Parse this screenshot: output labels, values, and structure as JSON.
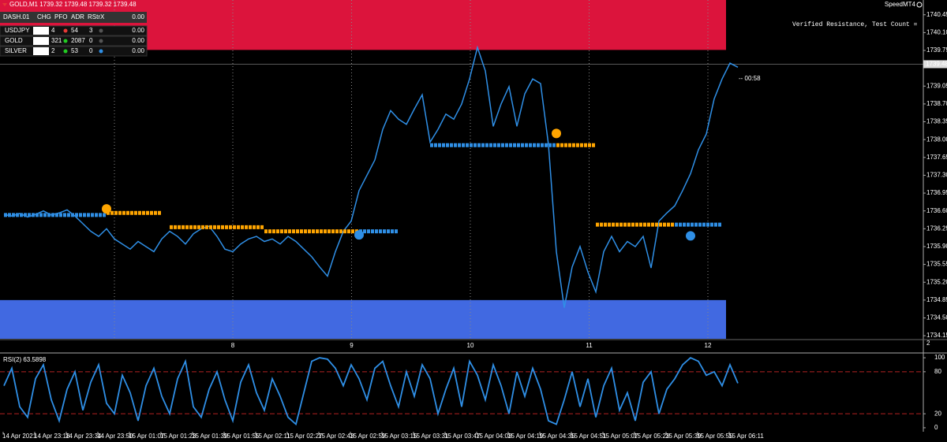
{
  "header": {
    "symbol_info": "GOLD,M1 1739.32 1739.48 1739.32 1739.48",
    "app": "SpeedMT4"
  },
  "dashboard": {
    "columns": [
      "DASH.01",
      "CHG",
      "PFO",
      "ADR",
      "RStr",
      "X",
      "0.00"
    ],
    "rows": [
      {
        "symbol": "USDJPY",
        "chg": "3%",
        "pfo": "4",
        "adr": "54",
        "rstr": "3",
        "value": "0.00",
        "symbol_color": "#ffffff",
        "dot_colors": [
          "#e53935",
          "#555555"
        ]
      },
      {
        "symbol": "GOLD",
        "chg": "19%",
        "pfo": "321",
        "adr": "2087",
        "rstr": "0",
        "value": "0.00",
        "symbol_color": "#40e0d0",
        "dot_colors": [
          "#22cc22",
          "#555555"
        ]
      },
      {
        "symbol": "SILVER",
        "chg": "6%",
        "pfo": "2",
        "adr": "53",
        "rstr": "0",
        "value": "0.00",
        "symbol_color": "#ffffff",
        "dot_colors": [
          "#22cc22",
          "#2f8fe6"
        ]
      }
    ]
  },
  "annotations": {
    "resistance_text": "Verified Resistance, Test Count =",
    "countdown": "-- 00:58",
    "pane_label": "2"
  },
  "chart_data": [
    {
      "type": "line",
      "color": "#2f8fe6",
      "values": [
        1736.53,
        1736.5,
        1736.55,
        1736.48,
        1736.53,
        1736.6,
        1736.52,
        1736.56,
        1736.62,
        1736.5,
        1736.35,
        1736.2,
        1736.1,
        1736.25,
        1736.05,
        1735.95,
        1735.85,
        1736.0,
        1735.9,
        1735.8,
        1736.05,
        1736.2,
        1736.1,
        1735.95,
        1736.15,
        1736.25,
        1736.3,
        1736.1,
        1735.85,
        1735.8,
        1735.95,
        1736.05,
        1736.1,
        1736.0,
        1736.05,
        1735.95,
        1736.1,
        1736.0,
        1735.85,
        1735.7,
        1735.5,
        1735.32,
        1735.8,
        1736.2,
        1736.4,
        1737.0,
        1737.3,
        1737.6,
        1738.2,
        1738.57,
        1738.4,
        1738.3,
        1738.6,
        1738.88,
        1737.95,
        1738.2,
        1738.5,
        1738.4,
        1738.7,
        1739.19,
        1739.81,
        1739.35,
        1738.26,
        1738.7,
        1739.04,
        1738.26,
        1738.9,
        1739.19,
        1739.1,
        1737.9,
        1735.8,
        1734.7,
        1735.5,
        1735.9,
        1735.4,
        1735.01,
        1735.8,
        1736.1,
        1735.8,
        1736.0,
        1735.9,
        1736.1,
        1735.48,
        1736.4,
        1736.56,
        1736.7,
        1737.0,
        1737.33,
        1737.8,
        1738.11,
        1738.8,
        1739.19,
        1739.5,
        1739.42
      ],
      "ylim": [
        1734.09,
        1740.74
      ],
      "yticks": [
        1740.45,
        {
          "value": 1740.1,
          "label": "1740.10"
        },
        1739.75,
        1739.05,
        {
          "value": 1738.7,
          "label": "1738.70"
        },
        1738.35,
        {
          "value": 1738.0,
          "label": "1738.00"
        },
        1737.65,
        {
          "value": 1737.3,
          "label": "1737.30"
        },
        1736.95,
        {
          "value": 1736.6,
          "label": "1736.60"
        },
        1736.25,
        {
          "value": 1735.9,
          "label": "1735.90"
        },
        1735.55,
        {
          "value": 1735.2,
          "label": "1735.20"
        },
        1734.85,
        {
          "value": 1734.5,
          "label": "1734.50"
        },
        1734.15
      ],
      "current_price": 1739.48,
      "zones": [
        {
          "low": 1739.76,
          "high": 1740.74,
          "color": "#dc143c"
        },
        {
          "low": 1734.09,
          "high": 1734.85,
          "color": "#4169e1"
        }
      ],
      "levels": [
        {
          "start": 0,
          "end": 13,
          "value": 1736.52,
          "color": "#2f8fe6"
        },
        {
          "start": 13,
          "end": 20,
          "value": 1736.56,
          "color": "#ffa500"
        },
        {
          "start": 21,
          "end": 33,
          "value": 1736.28,
          "color": "#ffa500"
        },
        {
          "start": 33,
          "end": 45,
          "value": 1736.2,
          "color": "#ffa500"
        },
        {
          "start": 45,
          "end": 50,
          "value": 1736.2,
          "color": "#2f8fe6"
        },
        {
          "start": 54,
          "end": 70,
          "value": 1737.89,
          "color": "#2f8fe6"
        },
        {
          "start": 70,
          "end": 75,
          "value": 1737.89,
          "color": "#ffa500"
        },
        {
          "start": 75,
          "end": 85,
          "value": 1736.33,
          "color": "#ffa500"
        },
        {
          "start": 85,
          "end": 91,
          "value": 1736.33,
          "color": "#2f8fe6"
        }
      ],
      "markers": [
        {
          "index": 13,
          "value": 1736.64,
          "color": "#ffa500"
        },
        {
          "index": 45,
          "value": 1736.13,
          "color": "#2f8fe6"
        },
        {
          "index": 70,
          "value": 1738.12,
          "color": "#ffa500"
        },
        {
          "index": 87,
          "value": 1736.11,
          "color": "#2f8fe6"
        }
      ],
      "day_labels": [
        "8",
        "9",
        "10",
        "11",
        "12"
      ],
      "x_labels": [
        "14 Apr 2021",
        "14 Apr 23:18",
        "14 Apr 23:34",
        "14 Apr 23:50",
        "15 Apr 01:07",
        "15 Apr 01:23",
        "15 Apr 01:39",
        "15 Apr 01:55",
        "15 Apr 02:11",
        "15 Apr 02:27",
        "15 Apr 02:43",
        "15 Apr 02:59",
        "15 Apr 03:15",
        "15 Apr 03:31",
        "15 Apr 03:47",
        "15 Apr 04:03",
        "15 Apr 04:19",
        "15 Apr 04:35",
        "15 Apr 04:51",
        "15 Apr 05:07",
        "15 Apr 05:23",
        "15 Apr 05:39",
        "15 Apr 05:55",
        "15 Apr 06:11"
      ]
    },
    {
      "type": "line",
      "title": "RSI(2) 63.5898",
      "color": "#2f8fe6",
      "values": [
        60,
        85,
        30,
        15,
        70,
        90,
        40,
        10,
        55,
        80,
        25,
        65,
        90,
        35,
        20,
        75,
        50,
        10,
        60,
        85,
        45,
        20,
        70,
        95,
        30,
        15,
        55,
        80,
        40,
        10,
        65,
        90,
        50,
        25,
        70,
        45,
        15,
        5,
        50,
        95,
        100,
        98,
        85,
        60,
        90,
        70,
        40,
        85,
        95,
        60,
        30,
        80,
        45,
        90,
        70,
        20,
        55,
        85,
        30,
        95,
        75,
        40,
        90,
        60,
        20,
        80,
        45,
        85,
        55,
        10,
        5,
        40,
        80,
        30,
        70,
        15,
        60,
        85,
        25,
        50,
        10,
        65,
        80,
        20,
        55,
        70,
        90,
        100,
        95,
        75,
        80,
        60,
        90,
        63.5898
      ],
      "ylim": [
        -5.7,
        104.6
      ],
      "yticks": [
        100,
        80,
        20,
        0
      ],
      "levels": [
        80,
        20
      ]
    }
  ]
}
